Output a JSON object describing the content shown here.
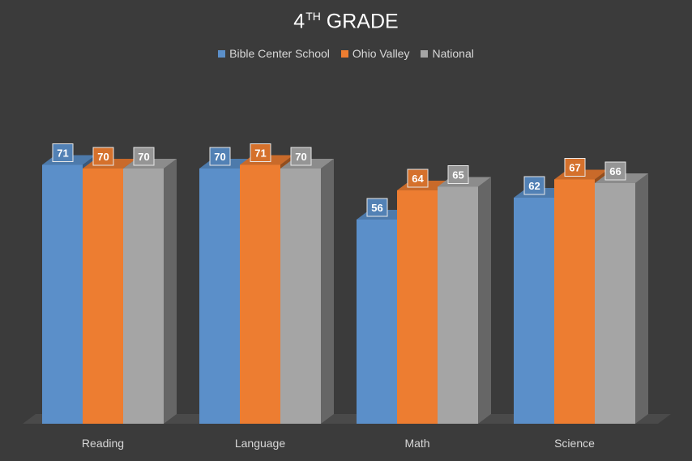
{
  "chart_data": {
    "type": "bar",
    "title": "4TH GRADE",
    "title_main": "4",
    "title_sup": "TH",
    "title_rest": " GRADE",
    "categories": [
      "Reading",
      "Language",
      "Math",
      "Science"
    ],
    "series": [
      {
        "name": "Bible Center School",
        "values": [
          71,
          70,
          56,
          62
        ],
        "color": "#5b8fc9"
      },
      {
        "name": "Ohio Valley",
        "values": [
          70,
          71,
          64,
          67
        ],
        "color": "#ed7d31"
      },
      {
        "name": "National",
        "values": [
          70,
          70,
          65,
          66
        ],
        "color": "#a5a5a5"
      }
    ],
    "ylim": [
      0,
      80
    ],
    "grid": false,
    "legend_position": "top",
    "data_labels": true,
    "background": "#3b3b3b"
  }
}
